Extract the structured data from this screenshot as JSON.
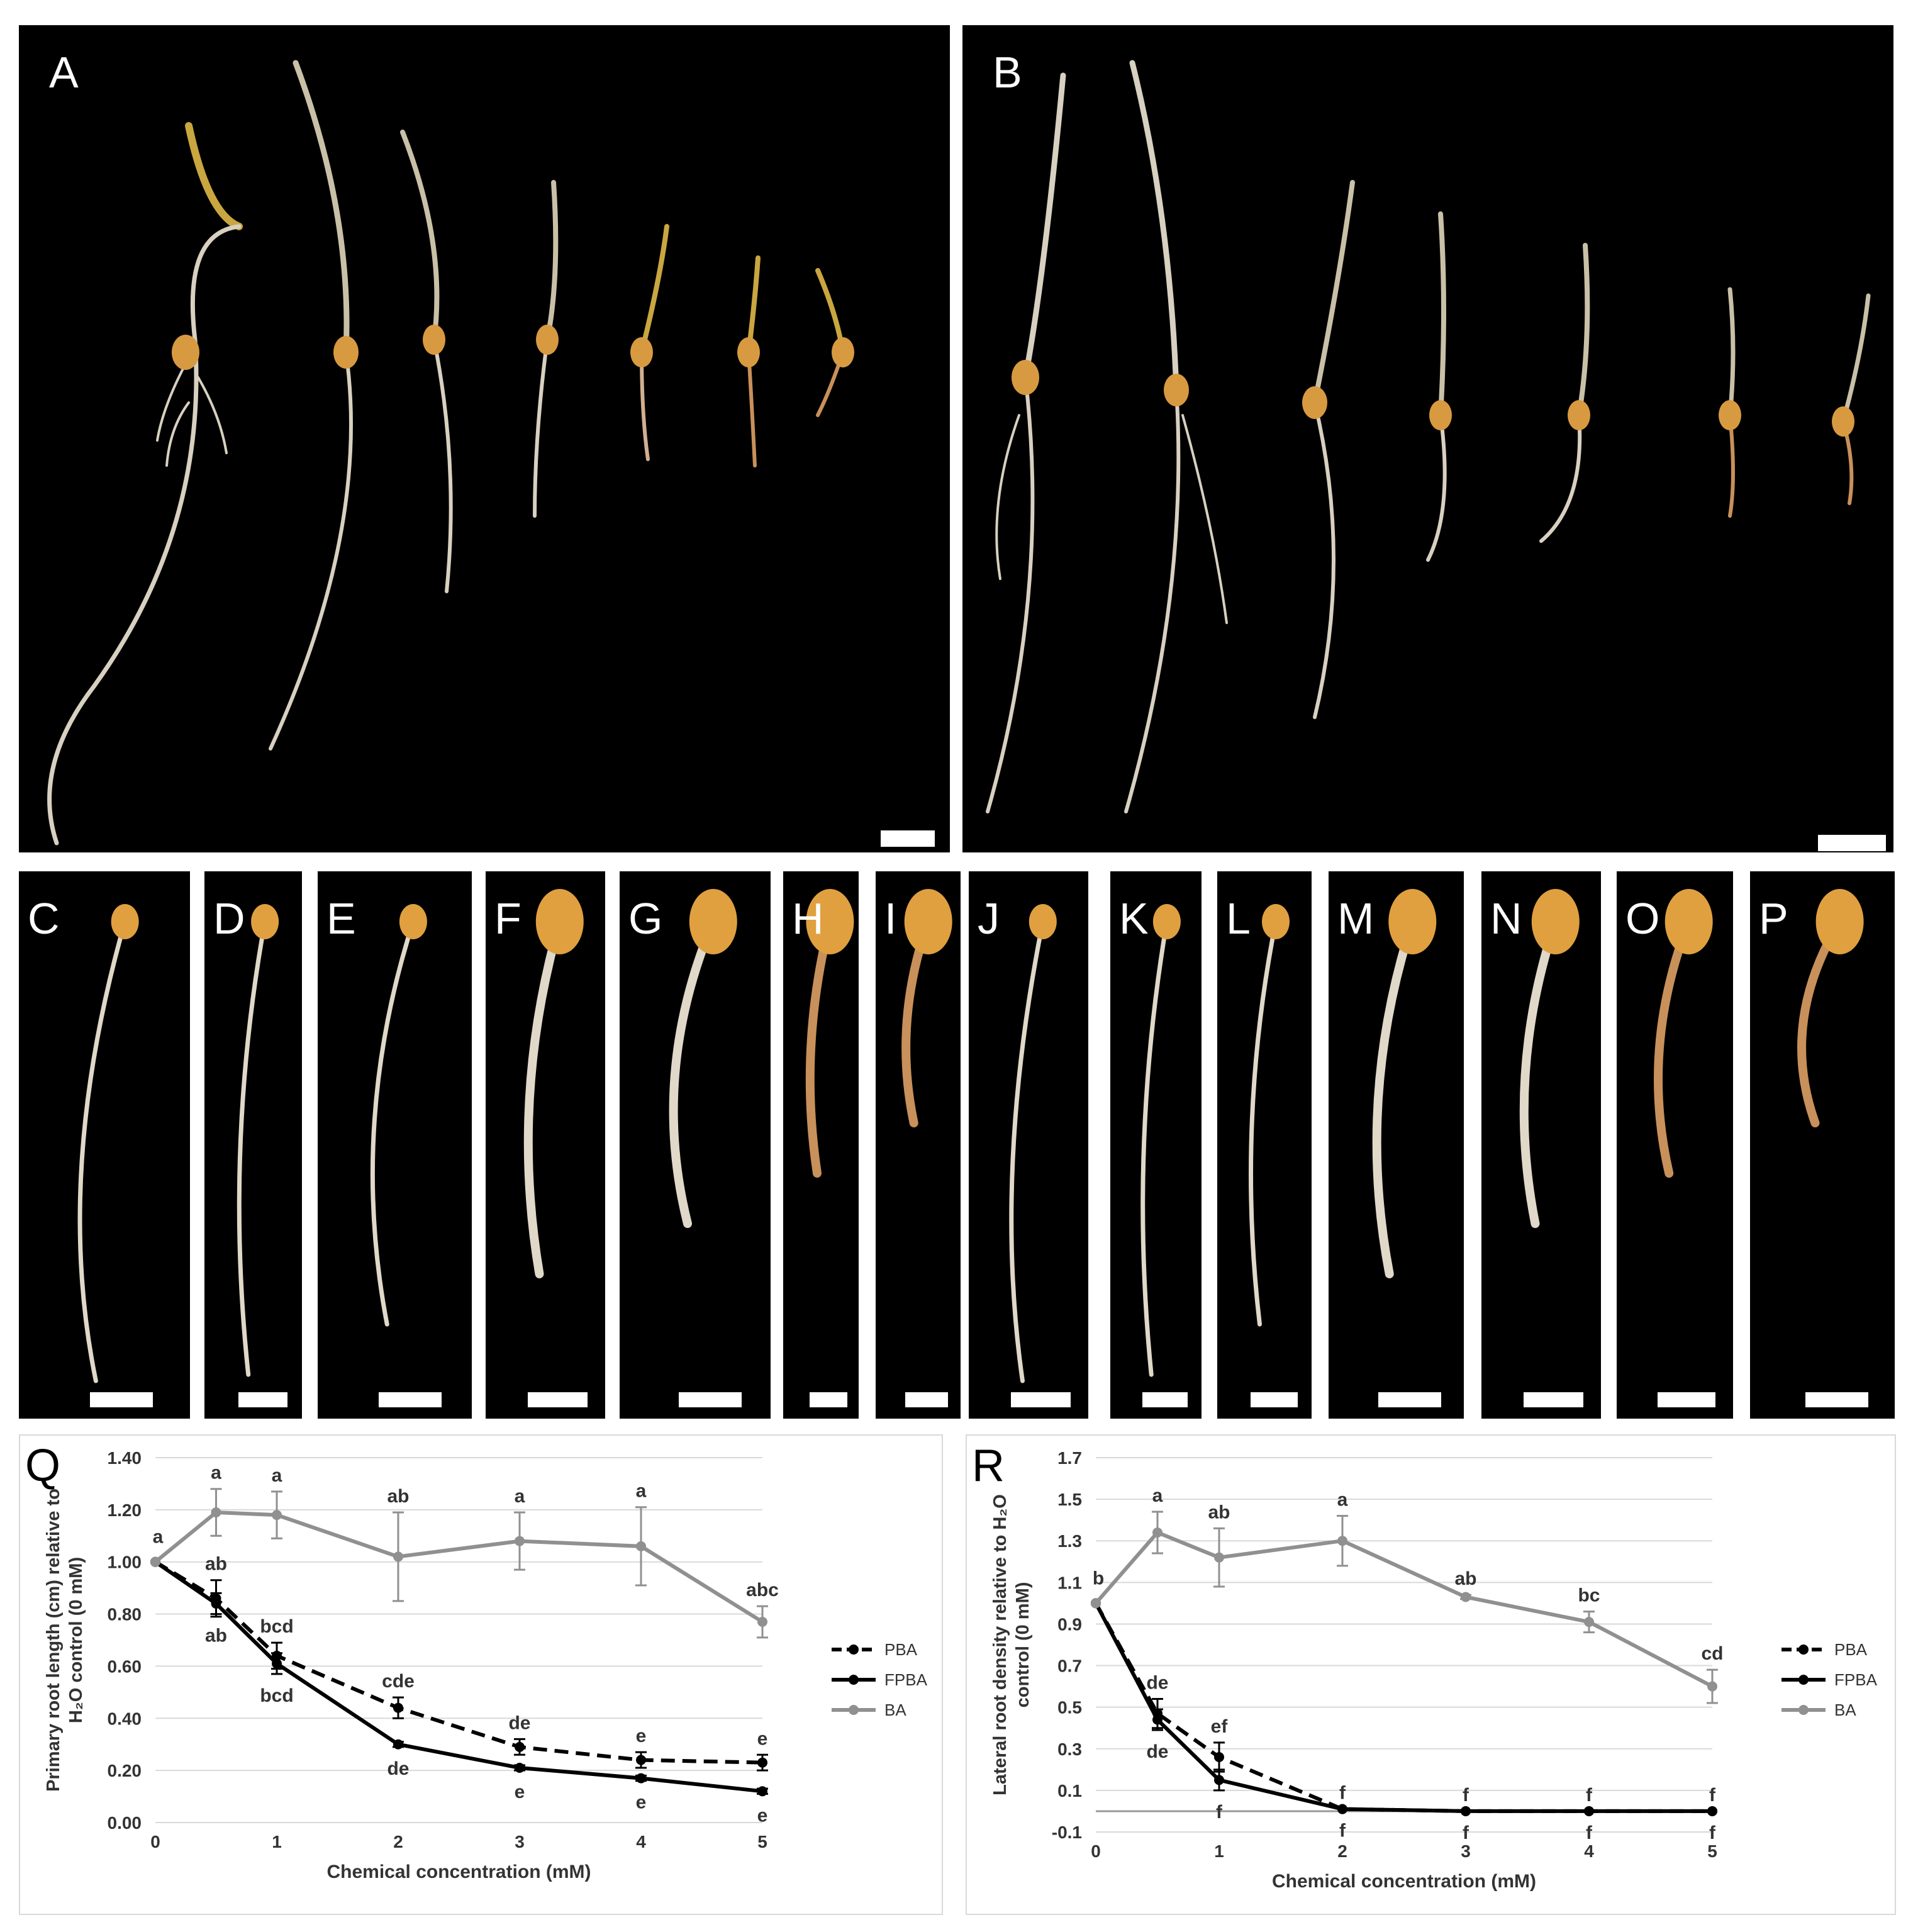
{
  "figure": {
    "photo_panels": {
      "top": [
        "A",
        "B"
      ],
      "strips": [
        "C",
        "D",
        "E",
        "F",
        "G",
        "H",
        "I",
        "J",
        "K",
        "L",
        "M",
        "N",
        "O",
        "P"
      ]
    }
  },
  "chart_data": [
    {
      "panel_label": "Q",
      "type": "line",
      "title": "",
      "xlabel": "Chemical concentration (mM)",
      "ylabel_lines": [
        "Primary root length (cm) relative to",
        "H₂O control (0 mM)"
      ],
      "x": [
        0,
        0.5,
        1,
        2,
        3,
        4,
        5
      ],
      "xticks": [
        "0",
        "1",
        "2",
        "3",
        "4",
        "5"
      ],
      "xtick_values": [
        0,
        1,
        2,
        3,
        4,
        5
      ],
      "yticks": [
        "0.00",
        "0.20",
        "0.40",
        "0.60",
        "0.80",
        "1.00",
        "1.20",
        "1.40"
      ],
      "ylim": [
        0,
        1.4
      ],
      "xlim": [
        0,
        5
      ],
      "grid": true,
      "legend": "right",
      "series": [
        {
          "name": "PBA",
          "color": "#000000",
          "style": "dashed",
          "values": [
            1.0,
            0.86,
            0.64,
            0.44,
            0.29,
            0.24,
            0.23
          ],
          "errors": [
            0.0,
            0.07,
            0.05,
            0.04,
            0.03,
            0.03,
            0.03
          ],
          "labels": [
            "",
            "ab",
            "bcd",
            "cde",
            "de",
            "e",
            "e"
          ]
        },
        {
          "name": "FPBA",
          "color": "#000000",
          "style": "solid",
          "values": [
            1.0,
            0.84,
            0.61,
            0.3,
            0.21,
            0.17,
            0.12
          ],
          "errors": [
            0.0,
            0.04,
            0.04,
            0.01,
            0.01,
            0.01,
            0.01
          ],
          "labels": [
            "",
            "ab",
            "bcd",
            "de",
            "e",
            "e",
            "e"
          ]
        },
        {
          "name": "BA",
          "color": "#909090",
          "style": "solid",
          "values": [
            1.0,
            1.19,
            1.18,
            1.02,
            1.08,
            1.06,
            0.77
          ],
          "errors": [
            0.0,
            0.09,
            0.09,
            0.17,
            0.11,
            0.15,
            0.06
          ],
          "labels": [
            "a",
            "a",
            "a",
            "ab",
            "a",
            "a",
            "abc"
          ]
        }
      ]
    },
    {
      "panel_label": "R",
      "type": "line",
      "title": "",
      "xlabel": "Chemical concentration (mM)",
      "ylabel_lines": [
        "Lateral root density relative to H₂O",
        "control (0 mM)"
      ],
      "x": [
        0,
        0.5,
        1,
        2,
        3,
        4,
        5
      ],
      "xticks": [
        "0",
        "1",
        "2",
        "3",
        "4",
        "5"
      ],
      "xtick_values": [
        0,
        1,
        2,
        3,
        4,
        5
      ],
      "yticks": [
        "-0.1",
        "0.1",
        "0.3",
        "0.5",
        "0.7",
        "0.9",
        "1.1",
        "1.3",
        "1.5",
        "1.7"
      ],
      "ylim": [
        -0.1,
        1.7
      ],
      "xlim": [
        0,
        5
      ],
      "grid": true,
      "legend": "right",
      "series": [
        {
          "name": "PBA",
          "color": "#000000",
          "style": "dashed",
          "values": [
            1.0,
            0.47,
            0.26,
            0.01,
            0.0,
            0.0,
            0.0
          ],
          "errors": [
            0.0,
            0.07,
            0.07,
            0.0,
            0.0,
            0.0,
            0.0
          ],
          "labels": [
            "",
            "de",
            "ef",
            "f",
            "f",
            "f",
            "f"
          ]
        },
        {
          "name": "FPBA",
          "color": "#000000",
          "style": "solid",
          "values": [
            1.0,
            0.44,
            0.15,
            0.01,
            0.0,
            0.0,
            0.0
          ],
          "errors": [
            0.0,
            0.05,
            0.05,
            0.0,
            0.0,
            0.0,
            0.0
          ],
          "labels": [
            "",
            "de",
            "f",
            "f",
            "f",
            "f",
            "f"
          ]
        },
        {
          "name": "BA",
          "color": "#909090",
          "style": "solid",
          "values": [
            1.0,
            1.34,
            1.22,
            1.3,
            1.03,
            0.91,
            0.6
          ],
          "errors": [
            0.0,
            0.1,
            0.14,
            0.12,
            0.01,
            0.05,
            0.08
          ],
          "labels": [
            "b",
            "a",
            "ab",
            "a",
            "ab",
            "bc",
            "cd"
          ]
        }
      ]
    }
  ]
}
